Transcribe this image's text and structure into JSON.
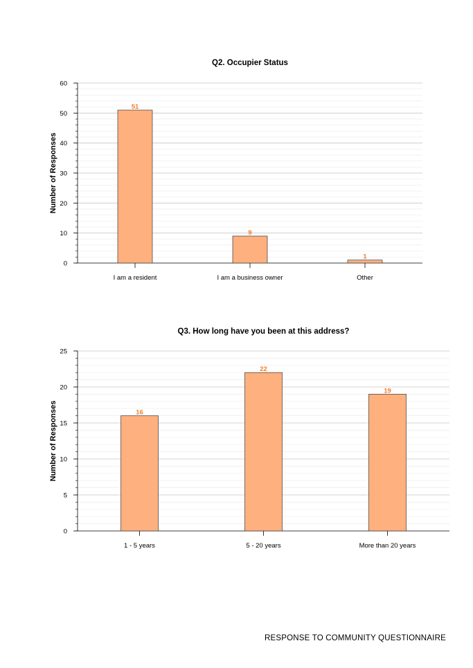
{
  "chart_data": [
    {
      "type": "bar",
      "title": "Q2. Occupier Status",
      "xlabel": "",
      "ylabel": "Number of Responses",
      "categories": [
        "I am a resident",
        "I am a business owner",
        "Other"
      ],
      "values": [
        51,
        9,
        1
      ],
      "ylim": [
        0,
        60
      ],
      "yticks": [
        0,
        10,
        20,
        30,
        40,
        50,
        60
      ],
      "grid": true,
      "bar_color": "#ffb07f",
      "label_color": "#f07e2a"
    },
    {
      "type": "bar",
      "title": "Q3. How long have you been at this address?",
      "xlabel": "",
      "ylabel": "Number of Responses",
      "categories": [
        "1 - 5 years",
        "5 - 20 years",
        "More than 20 years"
      ],
      "values": [
        16,
        22,
        19
      ],
      "ylim": [
        0,
        25
      ],
      "yticks": [
        0,
        5,
        10,
        15,
        20,
        25
      ],
      "grid": true,
      "bar_color": "#ffb07f",
      "label_color": "#f07e2a"
    }
  ],
  "footer": "RESPONSE TO COMMUNITY QUESTIONNAIRE"
}
